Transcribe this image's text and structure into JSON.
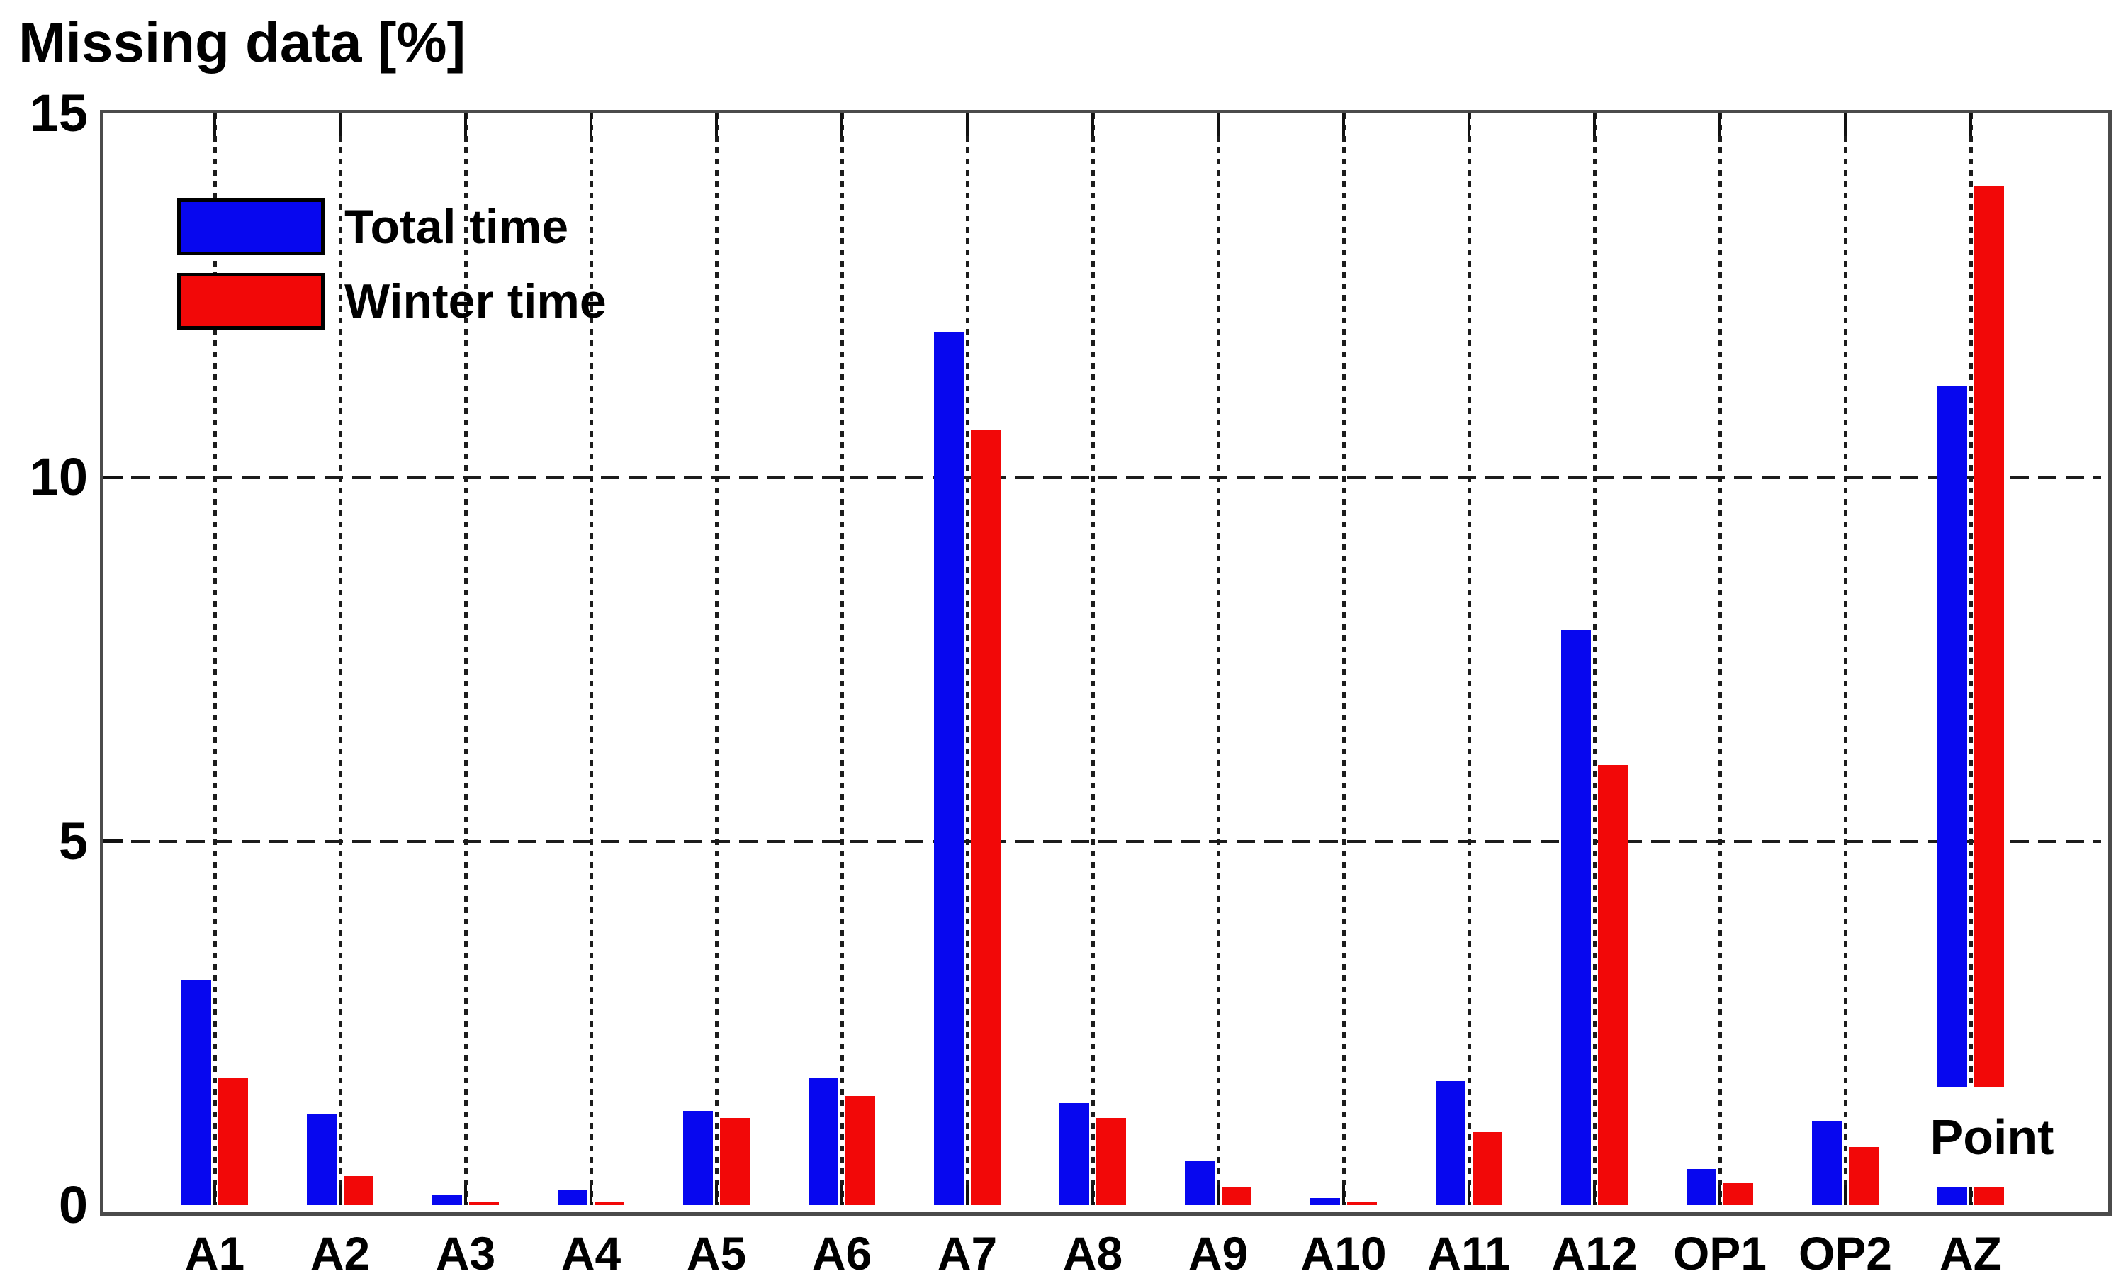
{
  "chart_data": {
    "type": "bar",
    "title": "Missing data [%]",
    "categories": [
      "A1",
      "A2",
      "A3",
      "A4",
      "A5",
      "A6",
      "A7",
      "A8",
      "A9",
      "A10",
      "A11",
      "A12",
      "OP1",
      "OP2",
      "AZ"
    ],
    "series": [
      {
        "name": "Total time",
        "color": "#0707ef",
        "values": [
          3.1,
          1.25,
          0.15,
          0.2,
          1.3,
          1.75,
          12.0,
          1.4,
          0.6,
          0.1,
          1.7,
          7.9,
          0.5,
          1.15,
          11.25
        ]
      },
      {
        "name": "Winter time",
        "color": "#f20808",
        "values": [
          1.75,
          0.4,
          0.05,
          0.05,
          1.2,
          1.5,
          10.65,
          1.2,
          0.25,
          0.05,
          1.0,
          6.05,
          0.3,
          0.8,
          14.0
        ]
      }
    ],
    "ylim": [
      0,
      15
    ],
    "yticks": [
      0,
      5,
      10,
      15
    ],
    "xlabel": "",
    "ylabel": "",
    "grid": {
      "horizontal_style": "dashed",
      "vertical_style": "dotted",
      "gridlines_behind_bars": true
    },
    "legend_position": "top-left-inside",
    "legend_frame": false,
    "annotation": {
      "text": "Point",
      "category": "AZ",
      "covers_value_range": [
        0.25,
        1.62
      ]
    }
  },
  "style_colors": {
    "axis_box": "#4b4b4b",
    "gridline": "#1c1c1c",
    "tick": "#111111",
    "text": "#000000",
    "background": "#ffffff"
  }
}
